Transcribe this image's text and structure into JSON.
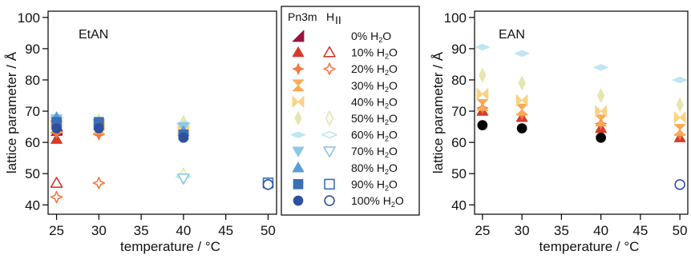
{
  "chart_data": [
    {
      "type": "scatter",
      "title": "EtAN",
      "xlabel": "temperature / °C",
      "ylabel": "lattice parameter / Å",
      "xlim": [
        24,
        51
      ],
      "ylim": [
        37,
        102
      ],
      "xticks": [
        25,
        30,
        35,
        40,
        45,
        50
      ],
      "yticks": [
        40,
        50,
        60,
        70,
        80,
        90,
        100
      ],
      "series": [
        {
          "key": "p0",
          "phase": "Pn3m",
          "x": [
            25
          ],
          "y": [
            64
          ]
        },
        {
          "key": "p10",
          "phase": "Pn3m",
          "x": [
            25
          ],
          "y": [
            61
          ]
        },
        {
          "key": "h10",
          "phase": "HII",
          "x": [
            25
          ],
          "y": [
            47
          ]
        },
        {
          "key": "p20",
          "phase": "Pn3m",
          "x": [
            25,
            30
          ],
          "y": [
            63,
            62.5
          ]
        },
        {
          "key": "h20",
          "phase": "HII",
          "x": [
            25,
            30
          ],
          "y": [
            42.5,
            47
          ]
        },
        {
          "key": "p30",
          "phase": "Pn3m",
          "x": [
            25,
            30
          ],
          "y": [
            65,
            64.5
          ]
        },
        {
          "key": "p40",
          "phase": "Pn3m",
          "x": [
            25,
            30,
            40
          ],
          "y": [
            66,
            65.5,
            64.5
          ]
        },
        {
          "key": "p50",
          "phase": "Pn3m",
          "x": [
            25,
            30,
            40
          ],
          "y": [
            67,
            67,
            66.5
          ]
        },
        {
          "key": "h50",
          "phase": "HII",
          "x": [
            40
          ],
          "y": [
            49.5
          ]
        },
        {
          "key": "p60",
          "phase": "Pn3m",
          "x": [
            25,
            40
          ],
          "y": [
            68,
            66
          ]
        },
        {
          "key": "h60",
          "phase": "HII",
          "x": [
            40
          ],
          "y": [
            49
          ]
        },
        {
          "key": "p70",
          "phase": "Pn3m",
          "x": [
            25,
            30,
            40
          ],
          "y": [
            67.5,
            66,
            65
          ]
        },
        {
          "key": "h70",
          "phase": "HII",
          "x": [
            40
          ],
          "y": [
            48.5
          ]
        },
        {
          "key": "p80",
          "phase": "Pn3m",
          "x": [
            25,
            40
          ],
          "y": [
            68,
            63.5
          ]
        },
        {
          "key": "p90",
          "phase": "Pn3m",
          "x": [
            25,
            30,
            40
          ],
          "y": [
            66.5,
            66.5,
            62.5
          ]
        },
        {
          "key": "h90",
          "phase": "HII",
          "x": [
            50
          ],
          "y": [
            47
          ]
        },
        {
          "key": "p100",
          "phase": "Pn3m",
          "x": [
            25,
            30,
            40
          ],
          "y": [
            64.5,
            64.5,
            61.5
          ]
        },
        {
          "key": "h100",
          "phase": "HII",
          "x": [
            50
          ],
          "y": [
            46.5
          ]
        }
      ]
    },
    {
      "type": "scatter",
      "title": "EAN",
      "xlabel": "temperature / °C",
      "ylabel": "lattice parameter / Å",
      "xlim": [
        24,
        51
      ],
      "ylim": [
        37,
        102
      ],
      "xticks": [
        25,
        30,
        35,
        40,
        45,
        50
      ],
      "yticks": [
        40,
        50,
        60,
        70,
        80,
        90,
        100
      ],
      "series": [
        {
          "key": "p10",
          "phase": "Pn3m",
          "x": [
            25,
            30,
            40,
            50
          ],
          "y": [
            70,
            68,
            64.5,
            61.5
          ]
        },
        {
          "key": "p20",
          "phase": "Pn3m",
          "x": [
            25,
            30,
            40,
            50
          ],
          "y": [
            71,
            69,
            66,
            62.5
          ]
        },
        {
          "key": "p30",
          "phase": "Pn3m",
          "x": [
            25,
            30,
            40,
            50
          ],
          "y": [
            72,
            70.5,
            67,
            64
          ]
        },
        {
          "key": "p40",
          "phase": "Pn3m",
          "x": [
            25,
            30,
            40,
            50
          ],
          "y": [
            75.5,
            73.5,
            70,
            68
          ]
        },
        {
          "key": "p50",
          "phase": "Pn3m",
          "x": [
            25,
            30,
            40,
            50
          ],
          "y": [
            81.5,
            79,
            75,
            72
          ]
        },
        {
          "key": "p60",
          "phase": "Pn3m",
          "x": [
            25,
            30,
            40,
            50
          ],
          "y": [
            90.5,
            88.5,
            84,
            80
          ]
        },
        {
          "key": "p100",
          "phase": "Pn3m",
          "x": [
            25,
            30,
            40
          ],
          "y": [
            65.5,
            64.5,
            61.5
          ]
        },
        {
          "key": "h100",
          "phase": "HII",
          "x": [
            50
          ],
          "y": [
            46.5
          ]
        }
      ]
    }
  ],
  "legend": {
    "header_pn3m": "Pn3m",
    "header_hii": "H",
    "header_hii_sub": "II",
    "entries": [
      {
        "key": "0",
        "label": "0% H",
        "label_tail": "O",
        "color": "#9c1444",
        "pn3m": "triangle-corner",
        "hii": null
      },
      {
        "key": "10",
        "label": "10% H",
        "label_tail": "O",
        "color": "#d43b2a",
        "pn3m": "triangle-up",
        "hii": "triangle-up-open"
      },
      {
        "key": "20",
        "label": "20% H",
        "label_tail": "O",
        "color": "#f47843",
        "pn3m": "star4",
        "hii": "star4-open"
      },
      {
        "key": "30",
        "label": "30% H",
        "label_tail": "O",
        "color": "#f9aa55",
        "pn3m": "hourglass",
        "hii": null
      },
      {
        "key": "40",
        "label": "40% H",
        "label_tail": "O",
        "color": "#fcd283",
        "pn3m": "bowtie",
        "hii": null
      },
      {
        "key": "50",
        "label": "50% H",
        "label_tail": "O",
        "color": "#e6e6b0",
        "pn3m": "diamond-tall",
        "hii": "diamond-tall-open"
      },
      {
        "key": "60",
        "label": "60% H",
        "label_tail": "O",
        "color": "#bfe6f2",
        "pn3m": "diamond-wide",
        "hii": "diamond-wide-open"
      },
      {
        "key": "70",
        "label": "70% H",
        "label_tail": "O",
        "color": "#8cc8e6",
        "pn3m": "triangle-down",
        "hii": "triangle-down-open"
      },
      {
        "key": "80",
        "label": "80% H",
        "label_tail": "O",
        "color": "#5a9bd5",
        "pn3m": "triangle-up",
        "hii": null
      },
      {
        "key": "90",
        "label": "90% H",
        "label_tail": "O",
        "color": "#3a6fb5",
        "pn3m": "square",
        "hii": "square-open"
      },
      {
        "key": "100",
        "label": "100% H",
        "label_tail": "O",
        "color": "#2f4fa0",
        "pn3m": "circle",
        "hii": "circle-open"
      }
    ],
    "ean_p100_color": "#000000"
  }
}
